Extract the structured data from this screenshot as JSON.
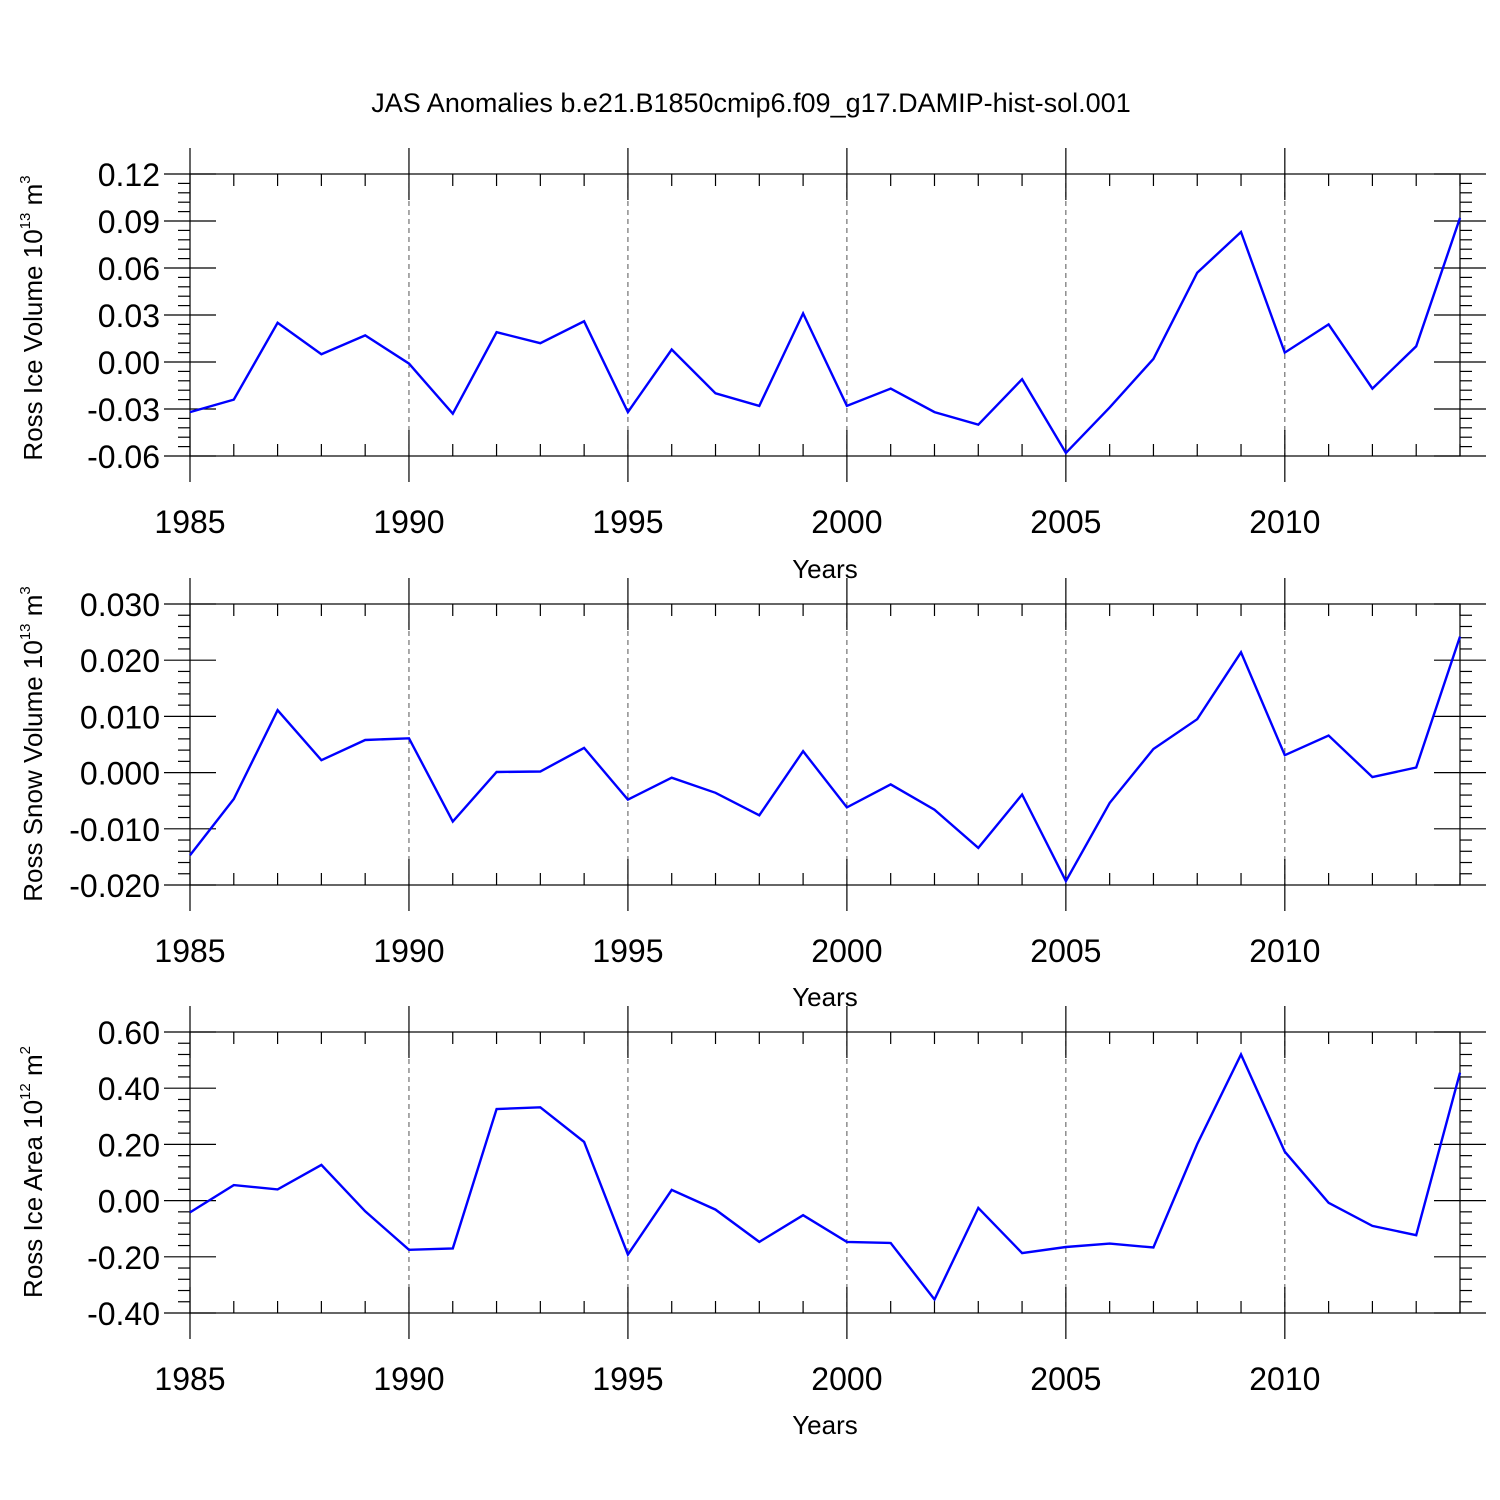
{
  "figure": {
    "title": "JAS Anomalies b.e21.B1850cmip6.f09_g17.DAMIP-hist-sol.001"
  },
  "chart_data": [
    {
      "type": "line",
      "title": "",
      "xlabel": "Years",
      "ylabel": "Ross Ice Volume 10",
      "ylabel_exp": "13",
      "ylabel_unit": "m",
      "ylabel_unit_exp": "3",
      "xlim": [
        1985,
        2014
      ],
      "ylim": [
        -0.06,
        0.12
      ],
      "yticks": [
        -0.06,
        -0.03,
        0.0,
        0.03,
        0.06,
        0.09,
        0.12
      ],
      "ytick_labels": [
        "-0.06",
        "-0.03",
        "0.00",
        "0.03",
        "0.06",
        "0.09",
        "0.12"
      ],
      "xticks": [
        1985,
        1990,
        1995,
        2000,
        2005,
        2010
      ],
      "xtick_labels": [
        "1985",
        "1990",
        "1995",
        "2000",
        "2005",
        "2010"
      ],
      "grid": "vertical dashed at major x ticks",
      "color": "#0000ff",
      "x": [
        1985,
        1986,
        1987,
        1988,
        1989,
        1990,
        1991,
        1992,
        1993,
        1994,
        1995,
        1996,
        1997,
        1998,
        1999,
        2000,
        2001,
        2002,
        2003,
        2004,
        2005,
        2006,
        2007,
        2008,
        2009,
        2010,
        2011,
        2012,
        2013,
        2014
      ],
      "values": [
        -0.032,
        -0.024,
        0.025,
        0.005,
        0.017,
        -0.001,
        -0.033,
        0.019,
        0.012,
        0.026,
        -0.032,
        0.008,
        -0.02,
        -0.028,
        0.031,
        -0.028,
        -0.017,
        -0.032,
        -0.04,
        -0.011,
        -0.058,
        -0.029,
        0.002,
        0.057,
        0.083,
        0.006,
        0.024,
        -0.017,
        0.01,
        0.092
      ]
    },
    {
      "type": "line",
      "title": "",
      "xlabel": "Years",
      "ylabel": "Ross Snow Volume 10",
      "ylabel_exp": "13",
      "ylabel_unit": "m",
      "ylabel_unit_exp": "3",
      "xlim": [
        1985,
        2014
      ],
      "ylim": [
        -0.02,
        0.03
      ],
      "yticks": [
        -0.02,
        -0.01,
        0.0,
        0.01,
        0.02,
        0.03
      ],
      "ytick_labels": [
        "-0.020",
        "-0.010",
        "0.000",
        "0.010",
        "0.020",
        "0.030"
      ],
      "xticks": [
        1985,
        1990,
        1995,
        2000,
        2005,
        2010
      ],
      "xtick_labels": [
        "1985",
        "1990",
        "1995",
        "2000",
        "2005",
        "2010"
      ],
      "grid": "vertical dashed at major x ticks",
      "color": "#0000ff",
      "x": [
        1985,
        1986,
        1987,
        1988,
        1989,
        1990,
        1991,
        1992,
        1993,
        1994,
        1995,
        1996,
        1997,
        1998,
        1999,
        2000,
        2001,
        2002,
        2003,
        2004,
        2005,
        2006,
        2007,
        2008,
        2009,
        2010,
        2011,
        2012,
        2013,
        2014
      ],
      "values": [
        -0.0147,
        -0.0047,
        0.0111,
        0.0022,
        0.0058,
        0.0061,
        -0.0087,
        0.0001,
        0.0002,
        0.0044,
        -0.0048,
        -0.0009,
        -0.0036,
        -0.0076,
        0.0038,
        -0.0062,
        -0.0021,
        -0.0066,
        -0.0134,
        -0.0039,
        -0.0193,
        -0.0054,
        0.0042,
        0.0095,
        0.0214,
        0.0031,
        0.0066,
        -0.0008,
        0.0009,
        0.0242
      ]
    },
    {
      "type": "line",
      "title": "",
      "xlabel": "Years",
      "ylabel": "Ross Ice Area 10",
      "ylabel_exp": "12",
      "ylabel_unit": "m",
      "ylabel_unit_exp": "2",
      "xlim": [
        1985,
        2014
      ],
      "ylim": [
        -0.4,
        0.6
      ],
      "yticks": [
        -0.4,
        -0.2,
        0.0,
        0.2,
        0.4,
        0.6
      ],
      "ytick_labels": [
        "-0.40",
        "-0.20",
        "0.00",
        "0.20",
        "0.40",
        "0.60"
      ],
      "xticks": [
        1985,
        1990,
        1995,
        2000,
        2005,
        2010
      ],
      "xtick_labels": [
        "1985",
        "1990",
        "1995",
        "2000",
        "2005",
        "2010"
      ],
      "grid": "vertical dashed at major x ticks",
      "color": "#0000ff",
      "x": [
        1985,
        1986,
        1987,
        1988,
        1989,
        1990,
        1991,
        1992,
        1993,
        1994,
        1995,
        1996,
        1997,
        1998,
        1999,
        2000,
        2001,
        2002,
        2003,
        2004,
        2005,
        2006,
        2007,
        2008,
        2009,
        2010,
        2011,
        2012,
        2013,
        2014
      ],
      "values": [
        -0.042,
        0.055,
        0.04,
        0.127,
        -0.038,
        -0.175,
        -0.17,
        0.326,
        0.332,
        0.209,
        -0.192,
        0.038,
        -0.032,
        -0.147,
        -0.052,
        -0.147,
        -0.151,
        -0.352,
        -0.026,
        -0.187,
        -0.165,
        -0.153,
        -0.167,
        0.201,
        0.52,
        0.174,
        -0.008,
        -0.09,
        -0.123,
        0.455
      ]
    }
  ]
}
